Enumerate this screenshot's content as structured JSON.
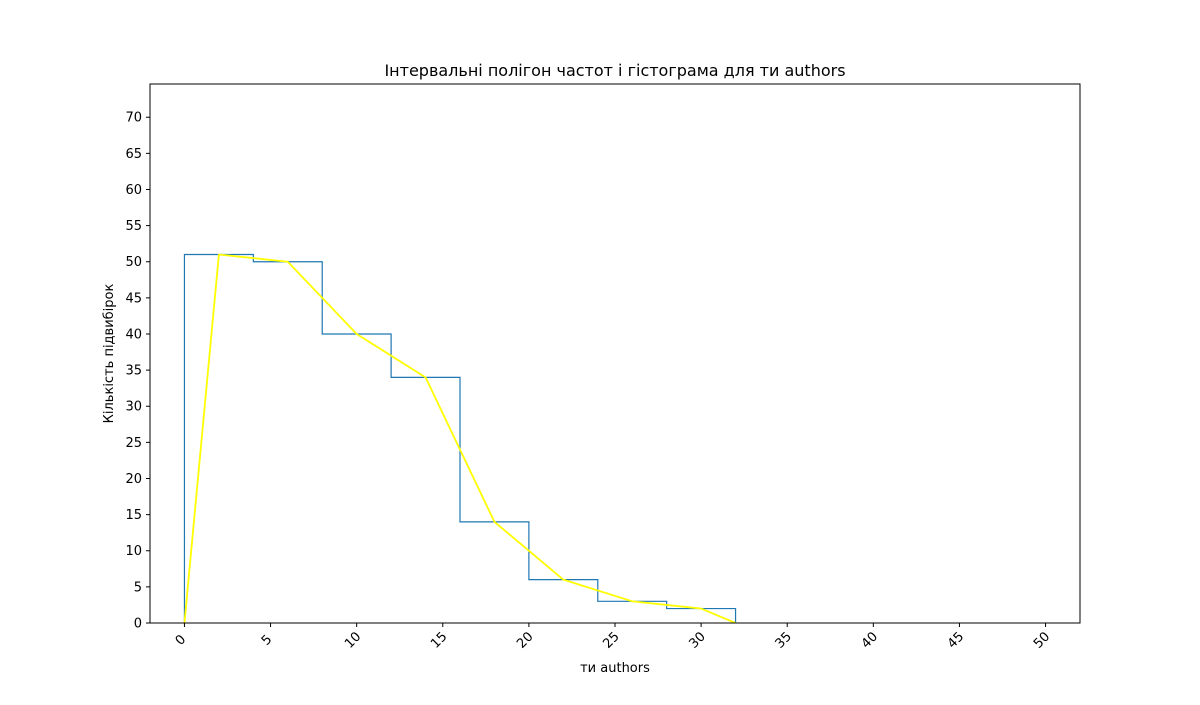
{
  "chart_data": {
    "type": "bar",
    "title": "Інтервальні полігон частот і гістограма для ти authors",
    "xlabel": "ти authors",
    "ylabel": "Кількість підвибірок",
    "xlim": [
      -2,
      52
    ],
    "ylim": [
      0,
      74.6
    ],
    "x_ticks": [
      0,
      5,
      10,
      15,
      20,
      25,
      30,
      35,
      40,
      45,
      50
    ],
    "y_ticks": [
      0,
      5,
      10,
      15,
      20,
      25,
      30,
      35,
      40,
      45,
      50,
      55,
      60,
      65,
      70
    ],
    "x_tick_rotation": -45,
    "grid": false,
    "legend": "none",
    "histogram": {
      "bin_edges": [
        0,
        4,
        8,
        12,
        16,
        20,
        24,
        28,
        32
      ],
      "counts": [
        51,
        50,
        40,
        34,
        14,
        6,
        3,
        2
      ],
      "color": "#1f77b4",
      "style": "step"
    },
    "polygon": {
      "x": [
        0,
        2,
        6,
        10,
        14,
        18,
        22,
        26,
        30,
        32
      ],
      "y": [
        0,
        51,
        50,
        40,
        34,
        14,
        6,
        3,
        2,
        0
      ],
      "color": "#ffff00"
    }
  }
}
